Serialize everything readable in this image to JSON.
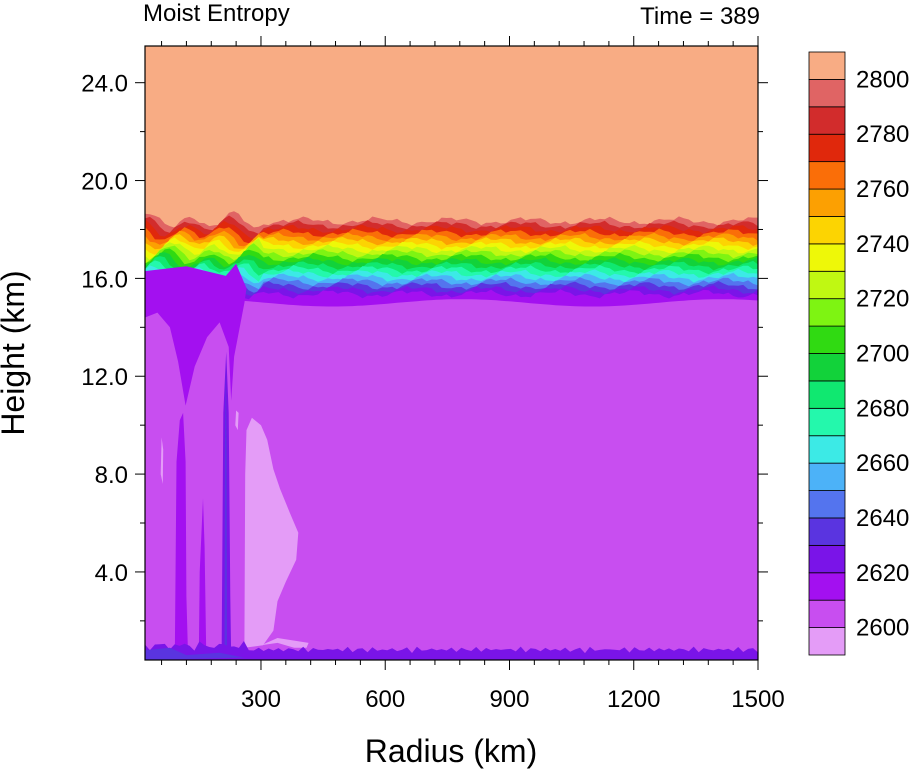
{
  "chart_data": {
    "type": "heatmap",
    "title_left": "Moist Entropy",
    "title_right": "Time = 389",
    "xlabel": "Radius (km)",
    "ylabel": "Height (km)",
    "xlim": [
      20,
      1500
    ],
    "ylim": [
      0.4,
      25.5
    ],
    "x_ticks": [
      300,
      600,
      900,
      1200,
      1500
    ],
    "x_tick_labels": [
      "300",
      "600",
      "900",
      "1200",
      "1500"
    ],
    "y_ticks": [
      4,
      8,
      12,
      16,
      20,
      24
    ],
    "y_tick_labels": [
      "4.0",
      "8.0",
      "12.0",
      "16.0",
      "20.0",
      "24.0"
    ],
    "colorbar": {
      "levels": [
        2600,
        2610,
        2620,
        2630,
        2640,
        2650,
        2660,
        2670,
        2680,
        2690,
        2700,
        2710,
        2720,
        2730,
        2740,
        2750,
        2760,
        2770,
        2780,
        2790,
        2800
      ],
      "labels": [
        "2600",
        "2620",
        "2640",
        "2660",
        "2680",
        "2700",
        "2720",
        "2740",
        "2760",
        "2780",
        "2800"
      ],
      "colors": [
        "#e49cf7",
        "#c84ef0",
        "#a310f0",
        "#7a14e8",
        "#5a34e0",
        "#5474ee",
        "#4cb2f8",
        "#3ceae6",
        "#24f8ac",
        "#10e870",
        "#12d23a",
        "#30da12",
        "#7ef412",
        "#c0f812",
        "#eef808",
        "#fcd402",
        "#fca002",
        "#fa6e08",
        "#e0280c",
        "#d22c2c",
        "#e06464",
        "#f8ac84"
      ]
    }
  }
}
